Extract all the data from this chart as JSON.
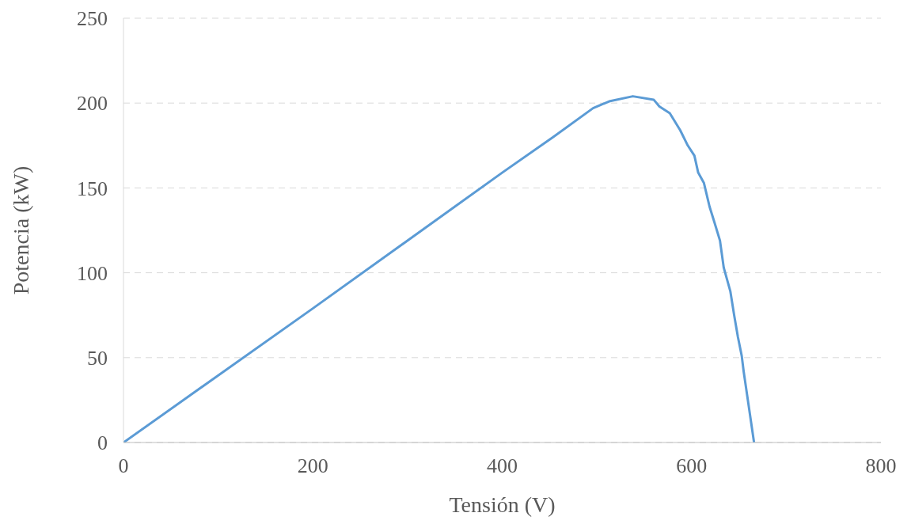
{
  "chart_data": {
    "type": "line",
    "xlabel": "Tensión (V)",
    "ylabel": "Potencia (kW)",
    "xlim": [
      0,
      800
    ],
    "xticks": [
      0,
      200,
      400,
      600,
      800
    ],
    "ylim": [
      0,
      250
    ],
    "yticks": [
      0,
      50,
      100,
      150,
      200,
      250
    ],
    "grid": "y",
    "marker": "none",
    "line_style": "solid",
    "series": [
      {
        "color": "#5b9bd5",
        "x": [
          0,
          200,
          400,
          454,
          496,
          513,
          538,
          560,
          566,
          577,
          588,
          596,
          603,
          607,
          613,
          619,
          624,
          630,
          634,
          641,
          645,
          649,
          653,
          655,
          666
        ],
        "values": [
          0,
          79,
          159,
          180,
          197,
          201,
          204,
          202,
          198,
          194,
          184,
          175,
          169,
          159,
          153,
          139,
          130,
          119,
          103,
          89,
          75,
          62,
          51,
          42,
          0
        ]
      }
    ]
  }
}
